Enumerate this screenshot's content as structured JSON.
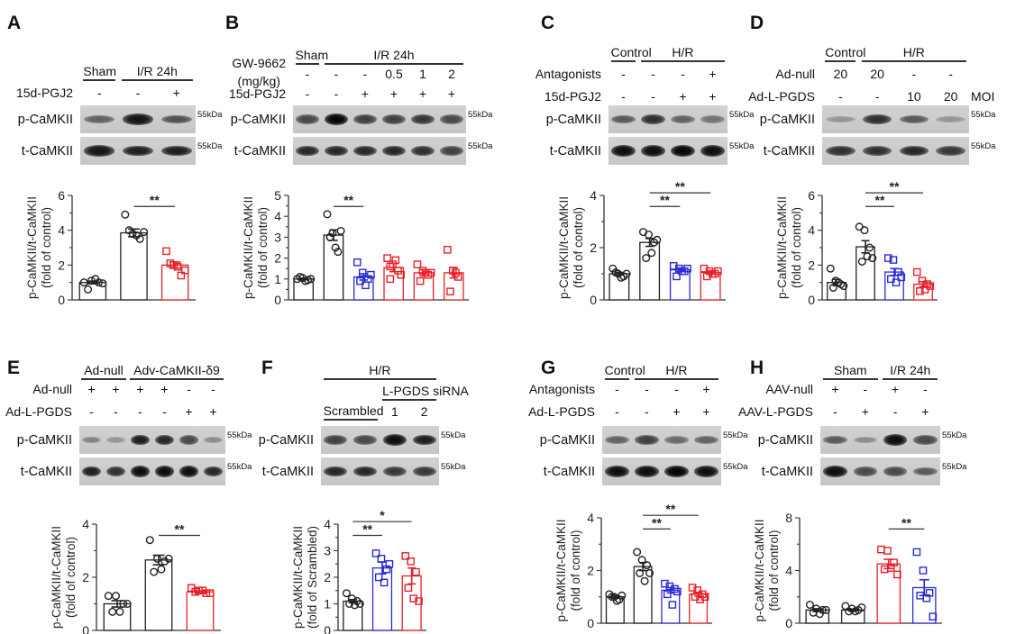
{
  "panels": [
    {
      "letter": "A",
      "groups": [
        {
          "label": "Sham",
          "lanes": [
            0,
            0
          ]
        },
        {
          "label": "I/R 24h",
          "lanes": [
            1,
            2
          ]
        }
      ],
      "rows": [
        {
          "label": "15d-PGJ2",
          "values": [
            "-",
            "-",
            "+"
          ]
        }
      ],
      "blots": [
        {
          "label": "p-CaMKII",
          "marker": "55kDa",
          "band_intensity": [
            0.45,
            0.9,
            0.55
          ]
        },
        {
          "label": "t-CaMKII",
          "marker": "55kDa",
          "band_intensity": [
            0.9,
            0.85,
            0.85
          ]
        }
      ]
    },
    {
      "letter": "B",
      "groups": [
        {
          "label": "Sham",
          "lanes": [
            0,
            0
          ]
        },
        {
          "label": "I/R 24h",
          "lanes": [
            1,
            5
          ]
        }
      ],
      "rows": [
        {
          "label": "GW-9662",
          "label2": "(mg/kg)",
          "values": [
            "-",
            "-",
            "-",
            "0.5",
            "1",
            "2"
          ]
        },
        {
          "label": "15d-PGJ2",
          "values": [
            "-",
            "-",
            "+",
            "+",
            "+",
            "+"
          ]
        }
      ],
      "blots": [
        {
          "label": "p-CaMKII",
          "marker": "55kDa",
          "band_intensity": [
            0.6,
            1,
            0.65,
            0.65,
            0.7,
            0.6
          ]
        },
        {
          "label": "t-CaMKII",
          "marker": "55kDa",
          "band_intensity": [
            0.8,
            0.8,
            0.8,
            0.8,
            0.75,
            0.65
          ]
        }
      ]
    },
    {
      "letter": "C",
      "groups": [
        {
          "label": "Control",
          "lanes": [
            0,
            0
          ]
        },
        {
          "label": "H/R",
          "lanes": [
            1,
            3
          ]
        }
      ],
      "rows": [
        {
          "label": "Antagonists",
          "values": [
            "-",
            "-",
            "-",
            "+"
          ]
        },
        {
          "label": "15d-PGJ2",
          "values": [
            "-",
            "-",
            "+",
            "+"
          ]
        }
      ],
      "blots": [
        {
          "label": "p-CaMKII",
          "marker": "55kDa",
          "band_intensity": [
            0.5,
            0.75,
            0.45,
            0.35
          ]
        },
        {
          "label": "t-CaMKII",
          "marker": "55kDa",
          "band_intensity": [
            0.95,
            0.95,
            1,
            0.95
          ]
        }
      ]
    },
    {
      "letter": "D",
      "groups": [
        {
          "label": "Control",
          "lanes": [
            0,
            0
          ]
        },
        {
          "label": "H/R",
          "lanes": [
            1,
            3
          ]
        }
      ],
      "rows": [
        {
          "label": "Ad-null",
          "values": [
            "20",
            "20",
            "-",
            "-"
          ]
        },
        {
          "label": "Ad-L-PGDS",
          "values": [
            "-",
            "-",
            "10",
            "20"
          ],
          "suffix": "MOI"
        }
      ],
      "blots": [
        {
          "label": "p-CaMKII",
          "marker": "55kDa",
          "band_intensity": [
            0.15,
            0.75,
            0.5,
            0.15
          ]
        },
        {
          "label": "t-CaMKII",
          "marker": "55kDa",
          "band_intensity": [
            0.75,
            0.75,
            0.8,
            0.7
          ]
        }
      ]
    },
    {
      "letter": "E",
      "groups": [
        {
          "label": "Ad-null",
          "lanes": [
            0,
            1
          ]
        },
        {
          "label": "Adv-CaMKII-δ9",
          "lanes": [
            2,
            5
          ]
        }
      ],
      "rows": [
        {
          "label": "Ad-null",
          "values": [
            "+",
            "+",
            "+",
            "+",
            "-",
            "-"
          ]
        },
        {
          "label": "Ad-L-PGDS",
          "values": [
            "-",
            "-",
            "-",
            "-",
            "+",
            "+"
          ]
        }
      ],
      "blots": [
        {
          "label": "p-CaMKII",
          "marker": "55kDa",
          "band_intensity": [
            0.25,
            0.15,
            0.85,
            0.8,
            0.6,
            0.2
          ]
        },
        {
          "label": "t-CaMKII",
          "marker": "55kDa",
          "band_intensity": [
            0.85,
            0.75,
            0.95,
            0.95,
            0.95,
            0.8
          ]
        }
      ]
    },
    {
      "letter": "F",
      "groups": [
        {
          "label": "H/R",
          "lanes": [
            0,
            3
          ]
        },
        {
          "label": "L-PGDS siRNA",
          "lanes": [
            2,
            3
          ]
        },
        {
          "label": "Scrambled",
          "lanes": [
            0,
            1
          ],
          "underline": true
        }
      ],
      "rows": [
        {
          "label": "",
          "values": [
            "",
            "",
            "1",
            "2"
          ]
        }
      ],
      "blots": [
        {
          "label": "p-CaMKII",
          "marker": "55kDa",
          "band_intensity": [
            0.65,
            0.6,
            0.95,
            0.85
          ]
        },
        {
          "label": "t-CaMKII",
          "marker": "55kDa",
          "band_intensity": [
            0.8,
            0.8,
            0.7,
            0.7
          ]
        }
      ]
    },
    {
      "letter": "G",
      "groups": [
        {
          "label": "Control",
          "lanes": [
            0,
            0
          ]
        },
        {
          "label": "H/R",
          "lanes": [
            1,
            3
          ]
        }
      ],
      "rows": [
        {
          "label": "Antagonists",
          "values": [
            "-",
            "-",
            "-",
            "+"
          ]
        },
        {
          "label": "Ad-L-PGDS",
          "values": [
            "-",
            "-",
            "+",
            "+"
          ]
        }
      ],
      "blots": [
        {
          "label": "p-CaMKII",
          "marker": "55kDa",
          "band_intensity": [
            0.45,
            0.65,
            0.4,
            0.45
          ]
        },
        {
          "label": "t-CaMKII",
          "marker": "55kDa",
          "band_intensity": [
            0.95,
            0.95,
            1,
            0.95
          ]
        }
      ]
    },
    {
      "letter": "H",
      "groups": [
        {
          "label": "Sham",
          "lanes": [
            0,
            1
          ]
        },
        {
          "label": "I/R 24h",
          "lanes": [
            2,
            3
          ]
        }
      ],
      "rows": [
        {
          "label": "AAV-null",
          "values": [
            "+",
            "-",
            "+",
            "-"
          ]
        },
        {
          "label": "AAV-L-PGDS",
          "values": [
            "-",
            "+",
            "-",
            "+"
          ]
        }
      ],
      "blots": [
        {
          "label": "p-CaMKII",
          "marker": "55kDa",
          "band_intensity": [
            0.5,
            0.2,
            0.95,
            0.6
          ]
        },
        {
          "label": "t-CaMKII",
          "marker": "55kDa",
          "band_intensity": [
            0.95,
            0.6,
            0.6,
            0.5
          ]
        }
      ]
    }
  ],
  "colors": {
    "black": "#222222",
    "red": "#e8202a",
    "blue": "#2a2ad8"
  },
  "chart_data": [
    {
      "panel": "A",
      "type": "bar",
      "ylabel": "p-CaMKII/t-CaMKII",
      "ylabel2": "(fold of control)",
      "ylim": [
        0,
        6
      ],
      "yticks": [
        0,
        2,
        4,
        6
      ],
      "series": [
        {
          "color": "black",
          "marker": "circle",
          "mean": 1.0,
          "sem": 0.08,
          "points": [
            1.0,
            1.1,
            1.0,
            0.6,
            1.2,
            0.95
          ]
        },
        {
          "color": "black",
          "marker": "circle",
          "mean": 3.85,
          "sem": 0.22,
          "points": [
            4.9,
            3.8,
            3.5,
            4.0,
            3.7,
            3.9
          ]
        },
        {
          "color": "red",
          "marker": "square",
          "mean": 2.0,
          "sem": 0.18,
          "points": [
            2.8,
            2.0,
            1.4,
            2.1,
            1.9,
            1.7
          ]
        }
      ],
      "comparisons": [
        {
          "from": 1,
          "to": 2,
          "label": "**"
        }
      ]
    },
    {
      "panel": "B",
      "type": "bar",
      "ylabel": "p-CaMKII/t-CaMKII",
      "ylabel2": "(fold of control)",
      "ylim": [
        0,
        5
      ],
      "yticks": [
        0,
        1,
        2,
        3,
        4,
        5
      ],
      "series": [
        {
          "color": "black",
          "marker": "circle",
          "mean": 1.0,
          "sem": 0.04,
          "points": [
            1.0,
            1.05,
            0.95,
            1.1,
            0.9,
            1.0
          ]
        },
        {
          "color": "black",
          "marker": "circle",
          "mean": 3.1,
          "sem": 0.25,
          "points": [
            4.1,
            3.2,
            2.3,
            3.0,
            2.5,
            3.3,
            3.0
          ]
        },
        {
          "color": "blue",
          "marker": "square",
          "mean": 1.1,
          "sem": 0.15,
          "points": [
            1.8,
            1.3,
            1.0,
            0.9,
            0.7,
            1.2
          ]
        },
        {
          "color": "red",
          "marker": "square",
          "mean": 1.55,
          "sem": 0.2,
          "points": [
            2.0,
            1.7,
            1.4,
            1.0,
            1.9,
            1.2,
            1.6
          ]
        },
        {
          "color": "red",
          "marker": "square",
          "mean": 1.3,
          "sem": 0.15,
          "points": [
            1.7,
            1.4,
            1.2,
            0.9,
            1.3,
            1.3
          ]
        },
        {
          "color": "red",
          "marker": "square",
          "mean": 1.3,
          "sem": 0.25,
          "points": [
            2.4,
            1.4,
            1.1,
            0.4,
            1.3
          ]
        }
      ],
      "comparisons": [
        {
          "from": 1,
          "to": 2,
          "label": "**"
        }
      ]
    },
    {
      "panel": "C",
      "type": "bar",
      "ylabel": "p-CaMKII/t-CaMKII",
      "ylabel2": "(fold of control)",
      "ylim": [
        0,
        4
      ],
      "yticks": [
        0,
        2,
        4
      ],
      "series": [
        {
          "color": "black",
          "marker": "circle",
          "mean": 1.0,
          "sem": 0.05,
          "points": [
            1.2,
            1.0,
            0.9,
            1.05,
            0.85,
            1.0
          ]
        },
        {
          "color": "black",
          "marker": "circle",
          "mean": 2.2,
          "sem": 0.15,
          "points": [
            2.6,
            2.5,
            2.2,
            1.6,
            1.8,
            2.3
          ]
        },
        {
          "color": "blue",
          "marker": "square",
          "mean": 1.15,
          "sem": 0.06,
          "points": [
            1.3,
            1.2,
            1.1,
            0.9,
            1.1,
            1.2
          ]
        },
        {
          "color": "red",
          "marker": "square",
          "mean": 1.05,
          "sem": 0.05,
          "points": [
            1.2,
            1.1,
            1.0,
            0.9,
            1.0,
            1.1
          ]
        }
      ],
      "comparisons": [
        {
          "from": 1,
          "to": 2,
          "label": "**"
        },
        {
          "from": 1,
          "to": 3,
          "label": "**"
        }
      ]
    },
    {
      "panel": "D",
      "type": "bar",
      "ylabel": "p-CaMKII/t-CaMKII",
      "ylabel2": "(fold of control)",
      "ylim": [
        0,
        6
      ],
      "yticks": [
        0,
        2,
        4,
        6
      ],
      "series": [
        {
          "color": "black",
          "marker": "circle",
          "mean": 1.0,
          "sem": 0.18,
          "points": [
            1.8,
            1.1,
            0.9,
            0.7,
            1.0,
            0.8
          ]
        },
        {
          "color": "black",
          "marker": "circle",
          "mean": 3.05,
          "sem": 0.35,
          "points": [
            4.2,
            4.0,
            3.0,
            2.2,
            2.5,
            2.4
          ]
        },
        {
          "color": "blue",
          "marker": "square",
          "mean": 1.6,
          "sem": 0.2,
          "points": [
            2.4,
            2.3,
            1.6,
            1.2,
            1.0,
            1.3
          ]
        },
        {
          "color": "red",
          "marker": "square",
          "mean": 0.9,
          "sem": 0.15,
          "points": [
            1.6,
            1.1,
            0.9,
            0.5,
            0.6,
            0.8
          ]
        }
      ],
      "comparisons": [
        {
          "from": 1,
          "to": 2,
          "label": "**"
        },
        {
          "from": 1,
          "to": 3,
          "label": "**"
        }
      ]
    },
    {
      "panel": "E",
      "type": "bar",
      "ylabel": "p-CaMKII/t-CaMKII",
      "ylabel2": "(fold of control)",
      "ylim": [
        0,
        4
      ],
      "yticks": [
        0,
        2,
        4
      ],
      "series": [
        {
          "color": "black",
          "marker": "circle",
          "mean": 1.0,
          "sem": 0.12,
          "points": [
            1.3,
            1.3,
            1.0,
            0.7,
            0.7,
            1.0
          ]
        },
        {
          "color": "black",
          "marker": "circle",
          "mean": 2.65,
          "sem": 0.18,
          "points": [
            3.4,
            2.7,
            2.6,
            2.2,
            2.3,
            2.7
          ]
        },
        {
          "color": "red",
          "marker": "square",
          "mean": 1.45,
          "sem": 0.04,
          "points": [
            1.6,
            1.5,
            1.4,
            1.45,
            1.5,
            1.4
          ]
        }
      ],
      "comparisons": [
        {
          "from": 1,
          "to": 2,
          "label": "**"
        }
      ]
    },
    {
      "panel": "F",
      "type": "bar",
      "ylabel": "p-CaMKII/t-CaMKII",
      "ylabel2": "(fold of Scrambled)",
      "ylim": [
        0,
        4
      ],
      "yticks": [
        0,
        1,
        2,
        3,
        4
      ],
      "series": [
        {
          "color": "black",
          "marker": "circle",
          "mean": 1.1,
          "sem": 0.06,
          "points": [
            1.4,
            1.2,
            1.1,
            1.0,
            0.95,
            1.0
          ]
        },
        {
          "color": "blue",
          "marker": "square",
          "mean": 2.35,
          "sem": 0.22,
          "points": [
            2.9,
            2.7,
            2.3,
            2.0,
            1.8,
            2.5
          ]
        },
        {
          "color": "red",
          "marker": "square",
          "mean": 2.05,
          "sem": 0.3,
          "points": [
            2.8,
            2.6,
            2.2,
            1.6,
            1.2,
            1.1
          ]
        }
      ],
      "comparisons": [
        {
          "from": 0,
          "to": 1,
          "label": "**"
        },
        {
          "from": 0,
          "to": 2,
          "label": "*"
        }
      ]
    },
    {
      "panel": "G",
      "type": "bar",
      "ylabel": "p-CaMKII/t-CaMKII",
      "ylabel2": "(fold of control)",
      "ylim": [
        0,
        4
      ],
      "yticks": [
        0,
        2,
        4
      ],
      "series": [
        {
          "color": "black",
          "marker": "circle",
          "mean": 1.0,
          "sem": 0.05,
          "points": [
            1.1,
            1.0,
            0.9,
            1.0,
            0.85,
            1.05
          ]
        },
        {
          "color": "black",
          "marker": "circle",
          "mean": 2.15,
          "sem": 0.15,
          "points": [
            2.7,
            2.4,
            2.2,
            1.9,
            1.6,
            1.9
          ]
        },
        {
          "color": "blue",
          "marker": "square",
          "mean": 1.25,
          "sem": 0.1,
          "points": [
            1.5,
            1.4,
            1.3,
            1.1,
            0.7,
            1.2
          ]
        },
        {
          "color": "red",
          "marker": "square",
          "mean": 1.1,
          "sem": 0.07,
          "points": [
            1.35,
            1.25,
            1.1,
            1.0,
            0.9,
            1.0
          ]
        }
      ],
      "comparisons": [
        {
          "from": 1,
          "to": 2,
          "label": "**"
        },
        {
          "from": 1,
          "to": 3,
          "label": "**"
        }
      ]
    },
    {
      "panel": "H",
      "type": "bar",
      "ylabel": "p-CaMKII/t-CaMKII",
      "ylabel2": "(fold of control)",
      "ylim": [
        0,
        8
      ],
      "yticks": [
        0,
        4,
        8
      ],
      "series": [
        {
          "color": "black",
          "marker": "circle",
          "mean": 1.0,
          "sem": 0.1,
          "points": [
            1.4,
            1.1,
            1.0,
            0.8,
            0.7,
            1.0
          ]
        },
        {
          "color": "black",
          "marker": "circle",
          "mean": 1.0,
          "sem": 0.06,
          "points": [
            1.3,
            1.1,
            1.0,
            0.9,
            0.9,
            1.2
          ]
        },
        {
          "color": "red",
          "marker": "square",
          "mean": 4.5,
          "sem": 0.35,
          "points": [
            5.6,
            5.5,
            4.6,
            4.1,
            4.2,
            3.7
          ]
        },
        {
          "color": "blue",
          "marker": "square",
          "mean": 2.7,
          "sem": 0.6,
          "points": [
            5.4,
            4.0,
            2.3,
            2.1,
            1.9,
            0.5
          ]
        }
      ],
      "comparisons": [
        {
          "from": 2,
          "to": 3,
          "label": "**"
        }
      ]
    }
  ]
}
